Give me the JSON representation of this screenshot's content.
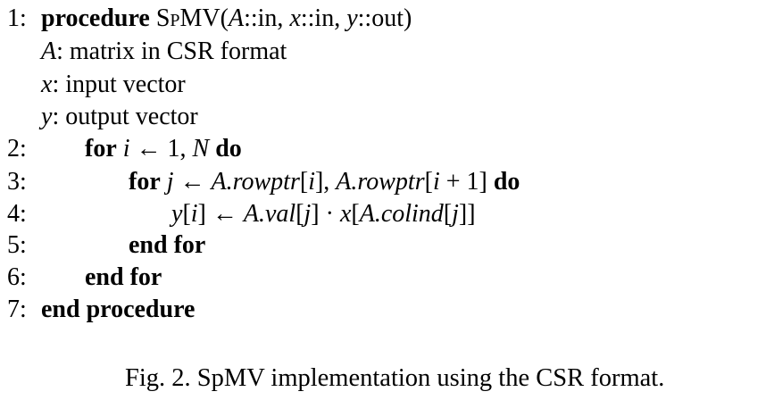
{
  "algorithm": {
    "lines": [
      {
        "num": "1:",
        "parts": [
          {
            "t": "procedure",
            "s": "kw"
          },
          {
            "t": " ",
            "s": ""
          },
          {
            "t": "SpMV",
            "s": "sc"
          },
          {
            "t": "(",
            "s": ""
          },
          {
            "t": "A",
            "s": "m"
          },
          {
            "t": "::in, ",
            "s": ""
          },
          {
            "t": "x",
            "s": "m"
          },
          {
            "t": "::in, ",
            "s": ""
          },
          {
            "t": "y",
            "s": "m"
          },
          {
            "t": "::out)",
            "s": ""
          }
        ]
      },
      {
        "num": "",
        "parts": [
          {
            "t": "A",
            "s": "m"
          },
          {
            "t": ": matrix in CSR format",
            "s": ""
          }
        ]
      },
      {
        "num": "",
        "parts": [
          {
            "t": "x",
            "s": "m"
          },
          {
            "t": ": input vector",
            "s": ""
          }
        ]
      },
      {
        "num": "",
        "parts": [
          {
            "t": "y",
            "s": "m"
          },
          {
            "t": ": output vector",
            "s": ""
          }
        ]
      },
      {
        "num": "2:",
        "parts": [
          {
            "t": "for",
            "s": "kw"
          },
          {
            "t": " ",
            "s": ""
          },
          {
            "t": "i",
            "s": "m"
          },
          {
            "t": " ← 1, ",
            "s": ""
          },
          {
            "t": "N",
            "s": "m"
          },
          {
            "t": " ",
            "s": ""
          },
          {
            "t": "do",
            "s": "kw"
          }
        ]
      },
      {
        "num": "3:",
        "parts": [
          {
            "t": "for",
            "s": "kw"
          },
          {
            "t": " ",
            "s": ""
          },
          {
            "t": "j",
            "s": "m"
          },
          {
            "t": " ← ",
            "s": ""
          },
          {
            "t": "A.rowptr",
            "s": "m"
          },
          {
            "t": "[",
            "s": ""
          },
          {
            "t": "i",
            "s": "m"
          },
          {
            "t": "], ",
            "s": ""
          },
          {
            "t": "A.rowptr",
            "s": "m"
          },
          {
            "t": "[",
            "s": ""
          },
          {
            "t": "i",
            "s": "m"
          },
          {
            "t": " + 1] ",
            "s": ""
          },
          {
            "t": "do",
            "s": "kw"
          }
        ]
      },
      {
        "num": "4:",
        "parts": [
          {
            "t": "y",
            "s": "m"
          },
          {
            "t": "[",
            "s": ""
          },
          {
            "t": "i",
            "s": "m"
          },
          {
            "t": "] ← ",
            "s": ""
          },
          {
            "t": "A.val",
            "s": "m"
          },
          {
            "t": "[",
            "s": ""
          },
          {
            "t": "j",
            "s": "m"
          },
          {
            "t": "] · ",
            "s": ""
          },
          {
            "t": "x",
            "s": "m"
          },
          {
            "t": "[",
            "s": ""
          },
          {
            "t": "A.colind",
            "s": "m"
          },
          {
            "t": "[",
            "s": ""
          },
          {
            "t": "j",
            "s": "m"
          },
          {
            "t": "]]",
            "s": ""
          }
        ]
      },
      {
        "num": "5:",
        "parts": [
          {
            "t": "end for",
            "s": "kw"
          }
        ]
      },
      {
        "num": "6:",
        "parts": [
          {
            "t": "end for",
            "s": "kw"
          }
        ]
      },
      {
        "num": "7:",
        "parts": [
          {
            "t": "end procedure",
            "s": "kw"
          }
        ]
      }
    ]
  },
  "caption": {
    "text": "Fig. 2.  SpMV implementation using the CSR format."
  }
}
